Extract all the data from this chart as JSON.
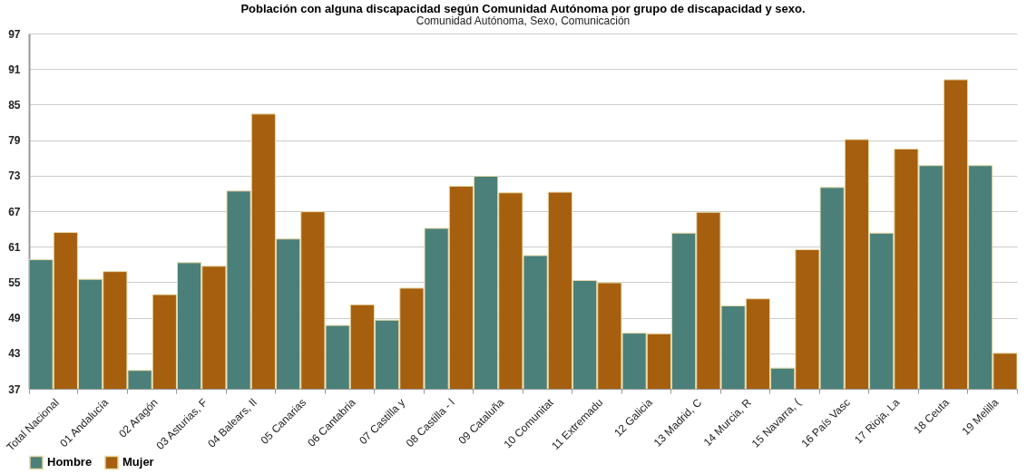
{
  "chart_data": {
    "type": "bar",
    "title": "Población con alguna discapacidad según Comunidad Autónoma por grupo de discapacidad y sexo.",
    "subtitle": "Comunidad Autónoma, Sexo, Comunicación",
    "categories": [
      "Total Nacional",
      "01 Andalucía",
      "02 Aragón",
      "03 Asturias, F",
      "04 Balears, Il",
      "05 Canarias",
      "06 Cantabria",
      "07 Castilla y",
      "08 Castilla - l",
      "09 Cataluña",
      "10 Comunitat",
      "11 Extremadu",
      "12 Galicia",
      "13 Madrid, C",
      "14 Murcia, R",
      "15 Navarra, (",
      "16 País Vasc",
      "17 Rioja, La",
      "18 Ceuta",
      "19 Melilla"
    ],
    "series": [
      {
        "name": "Hombre",
        "color": "#4a8079",
        "values": [
          58.8,
          55.5,
          40.1,
          58.3,
          70.4,
          62.3,
          47.7,
          48.6,
          64.1,
          72.9,
          59.5,
          55.3,
          46.4,
          63.3,
          51.0,
          40.5,
          71.0,
          63.3,
          74.7,
          74.7
        ]
      },
      {
        "name": "Mujer",
        "color": "#a65f0e",
        "values": [
          63.4,
          56.8,
          52.9,
          57.7,
          83.4,
          66.9,
          51.2,
          54.0,
          71.2,
          70.1,
          70.2,
          54.9,
          46.3,
          66.8,
          52.2,
          60.5,
          79.1,
          77.5,
          89.2,
          43.0
        ]
      }
    ],
    "ylim": [
      37,
      97
    ],
    "yticks": [
      37,
      43,
      49,
      55,
      61,
      67,
      73,
      79,
      85,
      91,
      97
    ],
    "grid": "y",
    "legend": "bottom"
  }
}
